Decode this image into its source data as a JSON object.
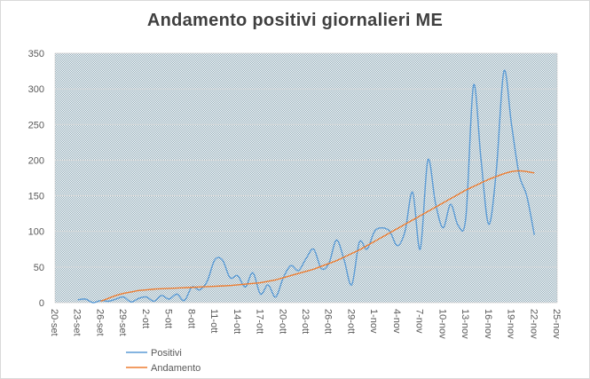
{
  "chart_data": {
    "type": "line",
    "title": "Andamento  positivi  giornalieri  ME",
    "xlabel": "",
    "ylabel": "",
    "ylim": [
      0,
      350
    ],
    "yticks": [
      0,
      50,
      100,
      150,
      200,
      250,
      300,
      350
    ],
    "xticks": [
      "20-set",
      "23-set",
      "26-set",
      "29-set",
      "2-ott",
      "5-ott",
      "8-ott",
      "11-ott",
      "14-ott",
      "17-ott",
      "20-ott",
      "23-ott",
      "26-ott",
      "29-ott",
      "1-nov",
      "4-nov",
      "7-nov",
      "10-nov",
      "13-nov",
      "16-nov",
      "19-nov",
      "22-nov",
      "25-nov"
    ],
    "plot_background": "dotted",
    "legend_position": "bottom-left",
    "series": [
      {
        "name": "Positivi",
        "color": "#5b9bd5",
        "x": [
          "20-set",
          "21-set",
          "22-set",
          "23-set",
          "24-set",
          "25-set",
          "26-set",
          "27-set",
          "28-set",
          "29-set",
          "30-set",
          "1-ott",
          "2-ott",
          "3-ott",
          "4-ott",
          "5-ott",
          "6-ott",
          "7-ott",
          "8-ott",
          "9-ott",
          "10-ott",
          "11-ott",
          "12-ott",
          "13-ott",
          "14-ott",
          "15-ott",
          "16-ott",
          "17-ott",
          "18-ott",
          "19-ott",
          "20-ott",
          "21-ott",
          "22-ott",
          "23-ott",
          "24-ott",
          "25-ott",
          "26-ott",
          "27-ott",
          "28-ott",
          "29-ott",
          "30-ott",
          "31-ott",
          "1-nov",
          "2-nov",
          "3-nov",
          "4-nov",
          "5-nov",
          "6-nov",
          "7-nov",
          "8-nov",
          "9-nov",
          "10-nov",
          "11-nov",
          "12-nov",
          "13-nov",
          "14-nov",
          "15-nov",
          "16-nov",
          "17-nov",
          "18-nov",
          "19-nov",
          "20-nov",
          "21-nov",
          "22-nov"
        ],
        "values": [
          null,
          null,
          null,
          4,
          5,
          0,
          3,
          2,
          5,
          8,
          1,
          6,
          8,
          2,
          10,
          5,
          12,
          3,
          22,
          18,
          30,
          60,
          60,
          35,
          38,
          22,
          42,
          12,
          25,
          8,
          35,
          52,
          45,
          62,
          75,
          48,
          55,
          88,
          60,
          25,
          85,
          75,
          100,
          105,
          100,
          80,
          100,
          155,
          75,
          200,
          140,
          105,
          138,
          108,
          120,
          305,
          200,
          110,
          185,
          325,
          250,
          180,
          150,
          95
        ]
      },
      {
        "name": "Andamento",
        "color": "#ed7d31",
        "x": [
          "26-set",
          "27-set",
          "28-set",
          "29-set",
          "30-set",
          "1-ott",
          "2-ott",
          "3-ott",
          "4-ott",
          "5-ott",
          "6-ott",
          "7-ott",
          "8-ott",
          "9-ott",
          "10-ott",
          "11-ott",
          "12-ott",
          "13-ott",
          "14-ott",
          "15-ott",
          "16-ott",
          "17-ott",
          "18-ott",
          "19-ott",
          "20-ott",
          "21-ott",
          "22-ott",
          "23-ott",
          "24-ott",
          "25-ott",
          "26-ott",
          "27-ott",
          "28-ott",
          "29-ott",
          "30-ott",
          "31-ott",
          "1-nov",
          "2-nov",
          "3-nov",
          "4-nov",
          "5-nov",
          "6-nov",
          "7-nov",
          "8-nov",
          "9-nov",
          "10-nov",
          "11-nov",
          "12-nov",
          "13-nov",
          "14-nov",
          "15-nov",
          "16-nov",
          "17-nov",
          "18-nov",
          "19-nov",
          "20-nov",
          "21-nov",
          "22-nov"
        ],
        "values": [
          2,
          6,
          10,
          13,
          15,
          17,
          18,
          19,
          19.5,
          20,
          20.5,
          21,
          21.5,
          22,
          22.5,
          23,
          23.5,
          24,
          25,
          26,
          27,
          28,
          30,
          32,
          35,
          38,
          41,
          44,
          47,
          51,
          55,
          59,
          64,
          69,
          74,
          80,
          86,
          92,
          98,
          104,
          110,
          116,
          122,
          128,
          134,
          140,
          146,
          152,
          158,
          163,
          168,
          173,
          177,
          181,
          184,
          185,
          184,
          182
        ]
      }
    ]
  }
}
